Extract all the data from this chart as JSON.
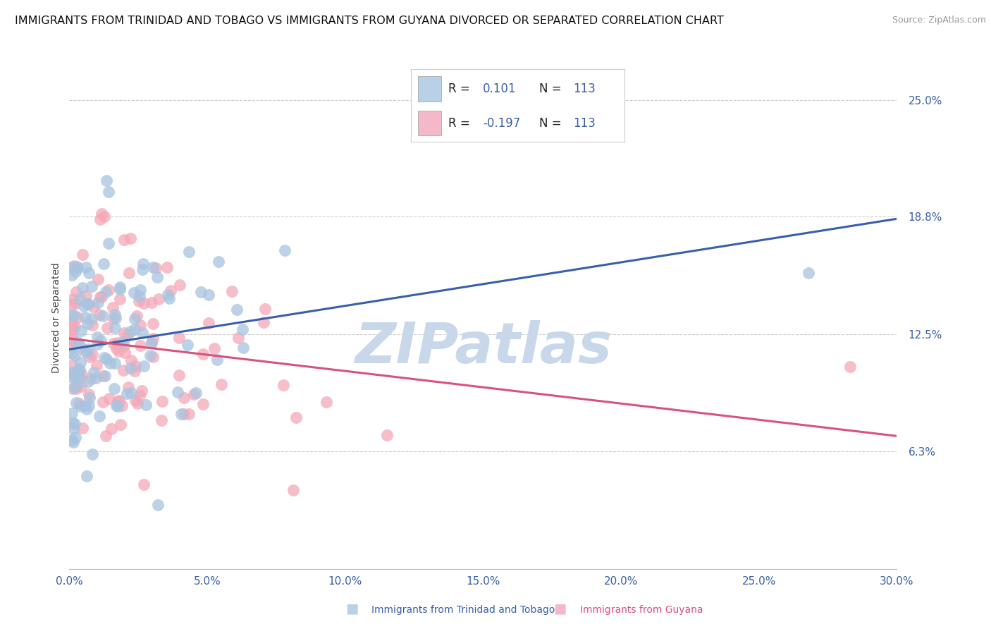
{
  "title": "IMMIGRANTS FROM TRINIDAD AND TOBAGO VS IMMIGRANTS FROM GUYANA DIVORCED OR SEPARATED CORRELATION CHART",
  "source": "Source: ZipAtlas.com",
  "ylabel_label": "Divorced or Separated",
  "xlabel_label_tt": "Immigrants from Trinidad and Tobago",
  "xlabel_label_gy": "Immigrants from Guyana",
  "xmin": 0.0,
  "xmax": 0.3,
  "ymin": 0.0,
  "ymax": 0.268,
  "ytick_vals": [
    0.063,
    0.125,
    0.188,
    0.25
  ],
  "ytick_labels": [
    "6.3%",
    "12.5%",
    "18.8%",
    "25.0%"
  ],
  "xtick_vals": [
    0.0,
    0.05,
    0.1,
    0.15,
    0.2,
    0.25,
    0.3
  ],
  "xtick_labels": [
    "0.0%",
    "5.0%",
    "10.0%",
    "15.0%",
    "20.0%",
    "25.0%",
    "30.0%"
  ],
  "R_tt": 0.101,
  "N_tt": 113,
  "R_gy": -0.197,
  "N_gy": 113,
  "color_tt": "#a8c4e0",
  "color_gy": "#f4a8b8",
  "line_color_tt": "#3a5faa",
  "line_color_gy": "#d9527a",
  "legend_box_tt": "#b8d0e8",
  "legend_box_gy": "#f4b8c8",
  "grid_color": "#cccccc",
  "watermark": "ZIPatlas",
  "watermark_color": "#c8d8ea",
  "title_fontsize": 11.5,
  "source_fontsize": 9,
  "axis_label_fontsize": 10,
  "tick_fontsize": 11,
  "seed": 42
}
